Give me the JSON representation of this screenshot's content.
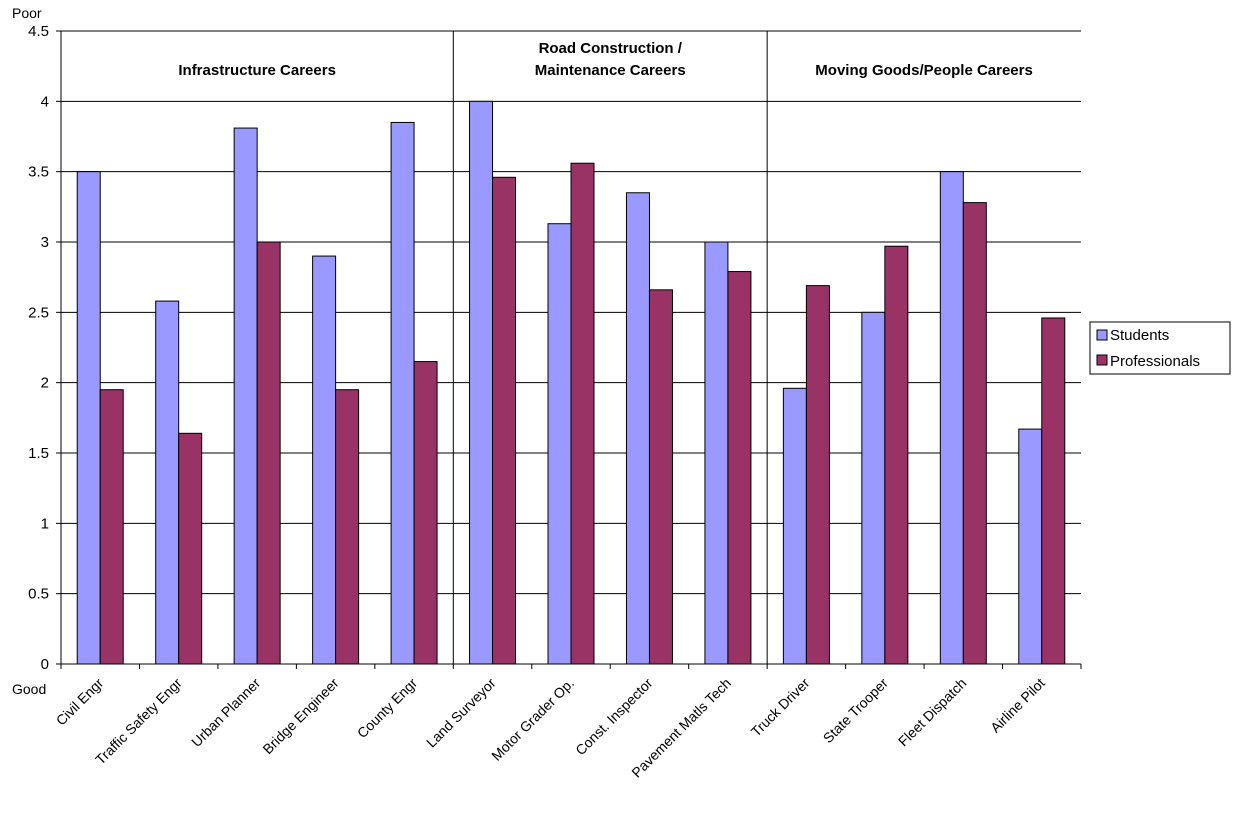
{
  "chart_data": {
    "type": "bar",
    "categories": [
      "Civil Engr",
      "Traffic Safety Engr",
      "Urban Planner",
      "Bridge Engineer",
      "County Engr",
      "Land Surveyor",
      "Motor Grader Op.",
      "Const. Inspector",
      "Pavement Matls Tech",
      "Truck Driver",
      "State Trooper",
      "Fleet Dispatch",
      "Airline Pilot"
    ],
    "series": [
      {
        "name": "Students",
        "color": "#9999ff",
        "values": [
          3.5,
          2.58,
          3.81,
          2.9,
          3.85,
          4.0,
          3.13,
          3.35,
          3.0,
          1.96,
          2.5,
          3.5,
          1.67
        ]
      },
      {
        "name": "Professionals",
        "color": "#993366",
        "values": [
          1.95,
          1.64,
          3.0,
          1.95,
          2.15,
          3.46,
          3.56,
          2.66,
          2.79,
          2.69,
          2.97,
          3.28,
          2.46
        ]
      }
    ],
    "ylim": [
      0,
      4.5
    ],
    "yticks": [
      "0",
      "0.5",
      "1",
      "1.5",
      "2",
      "2.5",
      "3",
      "3.5",
      "4",
      "4.5"
    ],
    "ytop_label": "Poor",
    "ybottom_label": "Good",
    "groups": [
      {
        "label_lines": [
          "Infrastructure Careers"
        ],
        "start": 0,
        "end": 4
      },
      {
        "label_lines": [
          "Road Construction /",
          "Maintenance Careers"
        ],
        "start": 5,
        "end": 8
      },
      {
        "label_lines": [
          "Moving Goods/People Careers"
        ],
        "start": 9,
        "end": 12
      }
    ],
    "grid": true,
    "legend_position": "right"
  }
}
